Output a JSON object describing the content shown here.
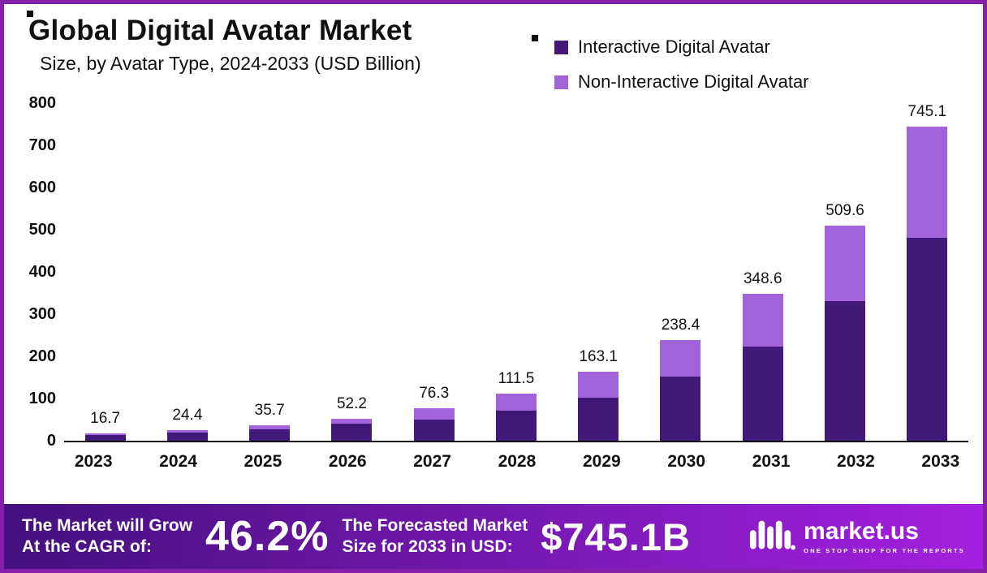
{
  "title": "Global Digital Avatar Market",
  "subtitle": "Size, by Avatar Type, 2024-2033 (USD Billion)",
  "legend": [
    {
      "label": "Interactive Digital Avatar",
      "color": "#421879"
    },
    {
      "label": "Non-Interactive Digital Avatar",
      "color": "#a263da"
    }
  ],
  "chart_data": {
    "type": "bar",
    "stacked": true,
    "title": "Global Digital Avatar Market Size, by Avatar Type, 2024-2033 (USD Billion)",
    "categories": [
      "2023",
      "2024",
      "2025",
      "2026",
      "2027",
      "2028",
      "2029",
      "2030",
      "2031",
      "2032",
      "2033"
    ],
    "series": [
      {
        "name": "Interactive Digital Avatar",
        "color": "#421879",
        "values": [
          14.0,
          20.0,
          27.0,
          40.0,
          50.0,
          71.0,
          102.0,
          152.0,
          224.0,
          330.0,
          480.0
        ]
      },
      {
        "name": "Non-Interactive Digital Avatar",
        "color": "#a263da",
        "values": [
          2.7,
          4.4,
          8.7,
          12.2,
          26.3,
          40.5,
          61.1,
          86.4,
          124.6,
          179.6,
          265.1
        ]
      }
    ],
    "totals": [
      16.7,
      24.4,
      35.7,
      52.2,
      76.3,
      111.5,
      163.1,
      238.4,
      348.6,
      509.6,
      745.1
    ],
    "xlabel": "",
    "ylabel": "",
    "ylim": [
      0,
      800
    ],
    "yticks": [
      0,
      100,
      200,
      300,
      400,
      500,
      600,
      700,
      800
    ],
    "grid": false,
    "legend_position": "top-right"
  },
  "banner": {
    "cagr_label_line1": "The Market will Grow",
    "cagr_label_line2": "At the CAGR of:",
    "cagr_value": "46.2%",
    "forecast_label_line1": "The Forecasted Market",
    "forecast_label_line2": "Size for 2033 in USD:",
    "forecast_value": "$745.1B",
    "logo_text": "market.us",
    "logo_tagline": "ONE STOP SHOP FOR THE REPORTS"
  },
  "colors": {
    "border": "#8620ab",
    "banner_gradient_start": "#45107e",
    "banner_gradient_end": "#a320e0",
    "interactive": "#421879",
    "non_interactive": "#a263da",
    "text": "#101010"
  }
}
